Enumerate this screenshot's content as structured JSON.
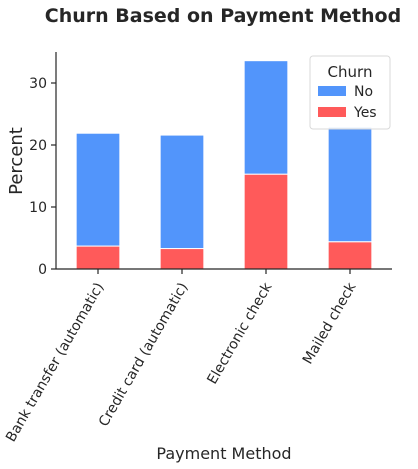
{
  "chart_data": {
    "type": "bar",
    "stacked": true,
    "title": "Churn Based on Payment Method",
    "xlabel": "Payment Method",
    "ylabel": "Percent",
    "categories": [
      "Bank transfer (automatic)",
      "Credit card (automatic)",
      "Electronic check",
      "Mailed check"
    ],
    "series": [
      {
        "name": "Yes",
        "color": "#ff5a5a",
        "values": [
          3.7,
          3.3,
          15.3,
          4.4
        ]
      },
      {
        "name": "No",
        "color": "#5295fb",
        "values": [
          18.2,
          18.3,
          18.3,
          18.5
        ]
      }
    ],
    "ylim": [
      0,
      35
    ],
    "yticks": [
      0,
      10,
      20,
      30
    ],
    "legend": {
      "title": "Churn",
      "position": "top-right",
      "entries": [
        "No",
        "Yes"
      ]
    },
    "grid": false
  }
}
